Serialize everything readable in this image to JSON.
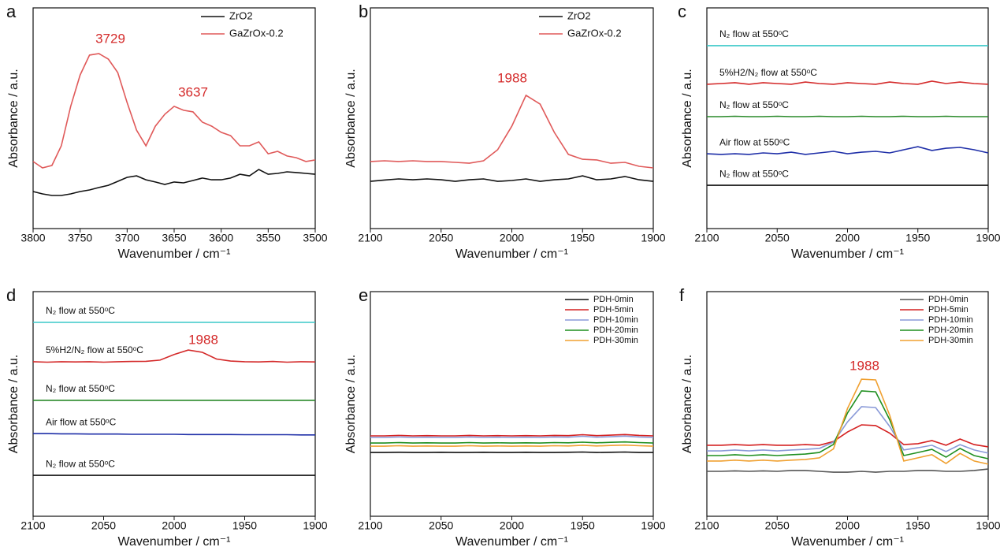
{
  "chart_data": [
    {
      "type": "line",
      "label": "a",
      "xlabel": "Wavenumber / cm⁻¹",
      "ylabel": "Absorbance / a.u.",
      "legend": "upper right",
      "xlim": [
        3800,
        3500
      ],
      "ylim": [
        0,
        100
      ],
      "xticks": [
        3800,
        3750,
        3700,
        3650,
        3600,
        3550,
        3500
      ],
      "x": [
        3800,
        3790,
        3780,
        3770,
        3760,
        3750,
        3740,
        3730,
        3720,
        3710,
        3700,
        3690,
        3680,
        3670,
        3660,
        3650,
        3640,
        3630,
        3620,
        3610,
        3600,
        3590,
        3580,
        3570,
        3560,
        3550,
        3540,
        3530,
        3520,
        3510,
        3500
      ],
      "annotations": [
        "3729",
        "3637"
      ],
      "series": [
        {
          "name": "ZrO2",
          "color": "#111111",
          "values": [
            16.8,
            15.7,
            15,
            15,
            15.7,
            16.8,
            17.5,
            18.6,
            19.6,
            21.4,
            23.2,
            23.9,
            22.1,
            21.1,
            20,
            21.1,
            20.7,
            21.8,
            22.9,
            22.1,
            22.1,
            22.9,
            24.6,
            23.9,
            26.8,
            24.6,
            25,
            25.7,
            25.4,
            25,
            24.6
          ]
        },
        {
          "name": "GaZrOx-0.2",
          "color": "#e05a5a",
          "values": [
            30.4,
            27.5,
            28.6,
            37.5,
            55.4,
            69.6,
            78.6,
            79.3,
            76.8,
            70.7,
            57.1,
            44.6,
            37.5,
            46.4,
            51.8,
            55.4,
            53.6,
            52.9,
            48.2,
            46.4,
            43.6,
            42.1,
            37.5,
            37.5,
            39.3,
            33.9,
            35,
            32.9,
            32.1,
            30.4,
            31.1
          ]
        }
      ]
    },
    {
      "type": "line",
      "label": "b",
      "xlabel": "Wavenumber / cm⁻¹",
      "ylabel": "Absorbance / a.u.",
      "legend": "upper right",
      "xlim": [
        2100,
        1900
      ],
      "ylim": [
        0,
        100
      ],
      "xticks": [
        2100,
        2050,
        2000,
        1950,
        1900
      ],
      "x": [
        2100,
        2090,
        2080,
        2070,
        2060,
        2050,
        2040,
        2030,
        2020,
        2010,
        2000,
        1990,
        1980,
        1970,
        1960,
        1950,
        1940,
        1930,
        1920,
        1910,
        1900
      ],
      "annotations": [
        "1988"
      ],
      "series": [
        {
          "name": "ZrO2",
          "color": "#111111",
          "values": [
            21.4,
            22,
            22.5,
            22.1,
            22.5,
            22.1,
            21.4,
            22.1,
            22.5,
            21.4,
            21.8,
            22.5,
            21.4,
            22.1,
            22.5,
            23.9,
            22.1,
            22.5,
            23.6,
            22.1,
            21.4
          ]
        },
        {
          "name": "GaZrOx-0.2",
          "color": "#e05a5a",
          "values": [
            30.4,
            30.7,
            30.4,
            30.7,
            30.4,
            30.4,
            30,
            29.6,
            30.7,
            35.7,
            46.4,
            60.4,
            56.4,
            43.6,
            33.6,
            31.4,
            31.1,
            29.6,
            30,
            28.2,
            27.5
          ]
        }
      ]
    },
    {
      "type": "line",
      "label": "c",
      "xlabel": "Wavenumber / cm⁻¹",
      "ylabel": "Absorbance / a.u.",
      "legend": "inline",
      "xlim": [
        2100,
        1900
      ],
      "ylim": [
        0,
        100
      ],
      "xticks": [
        2100,
        2050,
        2000,
        1950,
        1900
      ],
      "x": [
        2100,
        2090,
        2080,
        2070,
        2060,
        2050,
        2040,
        2030,
        2020,
        2010,
        2000,
        1990,
        1980,
        1970,
        1960,
        1950,
        1940,
        1930,
        1920,
        1910,
        1900
      ],
      "annotations": [],
      "series": [
        {
          "name": "N₂ flow at 550ᵒC",
          "color": "#111111",
          "values": [
            19.6,
            19.6,
            19.6,
            19.6,
            19.6,
            19.6,
            19.6,
            19.6,
            19.6,
            19.6,
            19.6,
            19.6,
            19.6,
            19.6,
            19.6,
            19.6,
            19.6,
            19.6,
            19.6,
            19.6,
            19.6
          ]
        },
        {
          "name": "Air flow at 550ᵒC",
          "color": "#1f2fa8",
          "values": [
            33.9,
            33.6,
            33.9,
            33.6,
            34.3,
            33.9,
            34.6,
            33.6,
            34.3,
            35,
            33.9,
            34.6,
            35,
            34.3,
            35.7,
            37.1,
            35.4,
            36.4,
            36.8,
            35.7,
            34.3
          ]
        },
        {
          "name": "N₂ flow at 550ᵒC",
          "color": "#2a8a2a",
          "values": [
            50.7,
            50.7,
            50.9,
            50.7,
            50.7,
            50.9,
            50.7,
            50.7,
            50.9,
            50.7,
            50.7,
            50.9,
            50.7,
            50.7,
            50.9,
            50.7,
            50.7,
            50.9,
            50.7,
            50.7,
            50.7
          ]
        },
        {
          "name": "5%H2/N₂ flow at 550ᵒC",
          "color": "#d42a2a",
          "values": [
            65.4,
            65.7,
            66.1,
            65.4,
            66.1,
            65.7,
            65.4,
            66.4,
            65.7,
            65.4,
            66.1,
            65.7,
            65.4,
            66.4,
            65.7,
            65.4,
            66.8,
            65.7,
            66.4,
            65.7,
            65.4
          ]
        },
        {
          "name": "N₂ flow at 550ᵒC",
          "color": "#3cc8c8",
          "values": [
            82.9,
            82.9,
            82.9,
            82.9,
            82.9,
            82.9,
            82.9,
            82.9,
            82.9,
            82.9,
            82.9,
            82.9,
            82.9,
            82.9,
            82.9,
            82.9,
            82.9,
            82.9,
            82.9,
            82.9,
            82.9
          ]
        }
      ]
    },
    {
      "type": "line",
      "label": "d",
      "xlabel": "Wavenumber / cm⁻¹",
      "ylabel": "Absorbance / a.u.",
      "legend": "inline",
      "xlim": [
        2100,
        1900
      ],
      "ylim": [
        0,
        100
      ],
      "xticks": [
        2100,
        2050,
        2000,
        1950,
        1900
      ],
      "x": [
        2100,
        2090,
        2080,
        2070,
        2060,
        2050,
        2040,
        2030,
        2020,
        2010,
        2000,
        1990,
        1980,
        1970,
        1960,
        1950,
        1940,
        1930,
        1920,
        1910,
        1900
      ],
      "annotations": [
        "1988"
      ],
      "series": [
        {
          "name": "N₂ flow at 550ᵒC",
          "color": "#111111",
          "values": [
            18.2,
            18.2,
            18.2,
            18.2,
            18.2,
            18.2,
            18.2,
            18.2,
            18.2,
            18.2,
            18.2,
            18.2,
            18.2,
            18.2,
            18.2,
            18.2,
            18.2,
            18.2,
            18.2,
            18.2,
            18.2
          ]
        },
        {
          "name": "Air flow at 550ᵒC",
          "color": "#1f2fa8",
          "values": [
            36.8,
            36.8,
            36.7,
            36.7,
            36.6,
            36.6,
            36.6,
            36.5,
            36.5,
            36.5,
            36.5,
            36.4,
            36.4,
            36.4,
            36.4,
            36.3,
            36.3,
            36.3,
            36.3,
            36.2,
            36.2
          ]
        },
        {
          "name": "N₂ flow at 550ᵒC",
          "color": "#2a8a2a",
          "values": [
            51.6,
            51.6,
            51.6,
            51.6,
            51.6,
            51.6,
            51.6,
            51.6,
            51.6,
            51.6,
            51.6,
            51.6,
            51.6,
            51.6,
            51.6,
            51.6,
            51.6,
            51.6,
            51.6,
            51.6,
            51.6
          ]
        },
        {
          "name": "5%H2/N₂ flow at 550ᵒC",
          "color": "#d42a2a",
          "values": [
            68.8,
            68.6,
            68.8,
            68.7,
            68.8,
            68.6,
            68.8,
            68.9,
            69,
            69.5,
            72,
            74,
            73,
            70,
            69.1,
            68.8,
            68.7,
            68.9,
            68.6,
            68.8,
            68.7
          ]
        },
        {
          "name": "N₂ flow at 550ᵒC",
          "color": "#3cc8c8",
          "values": [
            86.3,
            86.3,
            86.3,
            86.3,
            86.3,
            86.3,
            86.3,
            86.3,
            86.3,
            86.3,
            86.3,
            86.3,
            86.3,
            86.3,
            86.3,
            86.3,
            86.3,
            86.3,
            86.3,
            86.3,
            86.3
          ]
        }
      ]
    },
    {
      "type": "line",
      "label": "e",
      "xlabel": "Wavenumber / cm⁻¹",
      "ylabel": "Absorbance / a.u.",
      "legend": "upper right",
      "xlim": [
        2100,
        1900
      ],
      "ylim": [
        0,
        100
      ],
      "xticks": [
        2100,
        2050,
        2000,
        1950,
        1900
      ],
      "x": [
        2100,
        2090,
        2080,
        2070,
        2060,
        2050,
        2040,
        2030,
        2020,
        2010,
        2000,
        1990,
        1980,
        1970,
        1960,
        1950,
        1940,
        1930,
        1920,
        1910,
        1900
      ],
      "annotations": [],
      "series": [
        {
          "name": "PDH-0min",
          "color": "#111111",
          "values": [
            28.4,
            28.4,
            28.5,
            28.4,
            28.4,
            28.5,
            28.4,
            28.4,
            28.5,
            28.4,
            28.4,
            28.5,
            28.4,
            28.4,
            28.5,
            28.6,
            28.4,
            28.5,
            28.6,
            28.4,
            28.4
          ]
        },
        {
          "name": "PDH-5min",
          "color": "#d42020",
          "values": [
            35.8,
            35.8,
            36,
            35.8,
            35.9,
            35.8,
            35.8,
            36,
            35.8,
            35.9,
            35.8,
            35.9,
            35.8,
            36,
            35.9,
            36.3,
            35.9,
            36.1,
            36.4,
            36,
            35.8
          ]
        },
        {
          "name": "PDH-10min",
          "color": "#8a9ad8",
          "values": [
            35.1,
            35.1,
            35.3,
            35.1,
            35.2,
            35.1,
            35.1,
            35.3,
            35.1,
            35.2,
            35.1,
            35.2,
            35.1,
            35.3,
            35.2,
            35.6,
            35.2,
            35.4,
            35.7,
            35.3,
            35.1
          ]
        },
        {
          "name": "PDH-20min",
          "color": "#1f8f1f",
          "values": [
            32.6,
            32.6,
            32.8,
            32.6,
            32.7,
            32.6,
            32.6,
            32.8,
            32.6,
            32.7,
            32.6,
            32.7,
            32.6,
            32.8,
            32.7,
            33,
            32.7,
            32.9,
            33.1,
            32.8,
            32.6
          ]
        },
        {
          "name": "PDH-30min",
          "color": "#f0a030",
          "values": [
            31.2,
            31.2,
            31.4,
            31.2,
            31.3,
            31.2,
            31.2,
            31.4,
            31.2,
            31.3,
            31.2,
            31.3,
            31.2,
            31.4,
            31.3,
            31.6,
            31.3,
            31.5,
            31.7,
            31.4,
            31.2
          ]
        }
      ]
    },
    {
      "type": "line",
      "label": "f",
      "xlabel": "Wavenumber / cm⁻¹",
      "ylabel": "Absorbance / a.u.",
      "legend": "upper right",
      "xlim": [
        2100,
        1900
      ],
      "ylim": [
        0,
        100
      ],
      "xticks": [
        2100,
        2050,
        2000,
        1950,
        1900
      ],
      "x": [
        2100,
        2090,
        2080,
        2070,
        2060,
        2050,
        2040,
        2030,
        2020,
        2010,
        2000,
        1990,
        1980,
        1970,
        1960,
        1950,
        1940,
        1930,
        1920,
        1910,
        1900
      ],
      "annotations": [
        "1988"
      ],
      "series": [
        {
          "name": "PDH-0min",
          "color": "#555555",
          "values": [
            20,
            20,
            20.2,
            20,
            20.2,
            20,
            20.4,
            20.4,
            20,
            19.6,
            19.6,
            20,
            19.6,
            20,
            20,
            20.4,
            20.4,
            20,
            20,
            20.4,
            21
          ]
        },
        {
          "name": "PDH-5min",
          "color": "#d42020",
          "values": [
            31.6,
            31.6,
            31.9,
            31.6,
            31.9,
            31.6,
            31.6,
            31.9,
            31.6,
            33.3,
            37.5,
            40.7,
            40.4,
            37,
            31.9,
            32.3,
            33.7,
            31.6,
            34.4,
            31.9,
            30.9
          ]
        },
        {
          "name": "PDH-10min",
          "color": "#8a9ad8",
          "values": [
            29.1,
            29.1,
            29.5,
            29.1,
            29.5,
            29.1,
            29.5,
            29.8,
            30.2,
            33,
            42,
            48.8,
            48.4,
            40,
            29.5,
            30.5,
            31.6,
            28.8,
            31.9,
            29.5,
            28.1
          ]
        },
        {
          "name": "PDH-20min",
          "color": "#1f8f1f",
          "values": [
            27,
            27,
            27.4,
            27,
            27.4,
            27,
            27.4,
            27.7,
            28.4,
            32,
            46,
            55.8,
            55.4,
            43,
            27,
            28.4,
            29.8,
            26.3,
            30.2,
            27,
            25.6
          ]
        },
        {
          "name": "PDH-30min",
          "color": "#f0a030",
          "values": [
            24.6,
            24.6,
            25,
            24.6,
            25,
            24.6,
            25,
            25.3,
            26,
            30,
            48,
            61,
            60.7,
            45,
            24.6,
            26,
            27.4,
            23.5,
            28,
            24.6,
            23.2
          ]
        }
      ]
    }
  ]
}
